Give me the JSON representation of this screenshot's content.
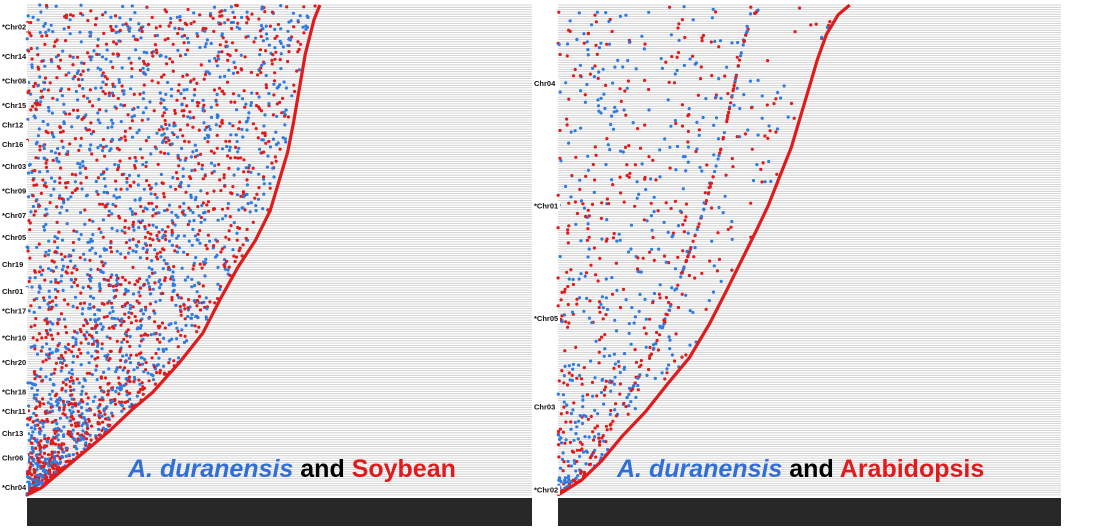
{
  "colors": {
    "blue_points": "#2f7be0",
    "red_points": "#e01b1b",
    "diagonal": "#e01b1b",
    "grid_line": "#c9c9c9",
    "background": "#ffffff",
    "bottom_band": "#1a1a1a"
  },
  "chart_data": [
    {
      "type": "scatter",
      "title": "",
      "caption": {
        "species": "A. duranensis",
        "connector": "and",
        "other": "Soybean"
      },
      "y_chromosome_labels": [
        "*Chr02",
        "*Chr14",
        "*Chr08",
        "*Chr15",
        "Chr12",
        "Chr16",
        "*Chr03",
        "*Chr09",
        "*Chr07",
        "*Chr05",
        "Chr19",
        "Chr01",
        "*Chr17",
        "*Chr10",
        "*Chr20",
        "*Chr18",
        "*Chr11",
        "Chr13",
        "Chr06",
        "*Chr04"
      ],
      "y_label_fractions": [
        0.05,
        0.11,
        0.16,
        0.21,
        0.25,
        0.29,
        0.335,
        0.385,
        0.435,
        0.48,
        0.535,
        0.59,
        0.63,
        0.685,
        0.735,
        0.795,
        0.835,
        0.88,
        0.93,
        0.99
      ],
      "diagonal_curve": [
        [
          0.0,
          1.0
        ],
        [
          0.05,
          0.985
        ],
        [
          0.11,
          0.955
        ],
        [
          0.2,
          0.91
        ],
        [
          0.28,
          0.87
        ],
        [
          0.36,
          0.825
        ],
        [
          0.43,
          0.79
        ],
        [
          0.52,
          0.73
        ],
        [
          0.6,
          0.67
        ],
        [
          0.66,
          0.6
        ],
        [
          0.72,
          0.535
        ],
        [
          0.78,
          0.48
        ],
        [
          0.83,
          0.42
        ],
        [
          0.86,
          0.36
        ],
        [
          0.89,
          0.3
        ],
        [
          0.91,
          0.24
        ],
        [
          0.93,
          0.17
        ],
        [
          0.95,
          0.1
        ],
        [
          0.98,
          0.03
        ],
        [
          1.0,
          0.0
        ]
      ],
      "point_seed": 11
    },
    {
      "type": "scatter",
      "title": "",
      "caption": {
        "species": "A. duranensis",
        "connector": "and",
        "other": "Arabidopsis"
      },
      "y_chromosome_labels": [
        "Chr04",
        "*Chr01",
        "*Chr05",
        "Chr03",
        "*Chr02"
      ],
      "y_label_fractions": [
        0.165,
        0.415,
        0.645,
        0.825,
        0.995
      ],
      "diagonal_curve": [
        [
          0.0,
          1.0
        ],
        [
          0.08,
          0.97
        ],
        [
          0.15,
          0.93
        ],
        [
          0.22,
          0.88
        ],
        [
          0.3,
          0.83
        ],
        [
          0.38,
          0.77
        ],
        [
          0.45,
          0.72
        ],
        [
          0.52,
          0.65
        ],
        [
          0.58,
          0.58
        ],
        [
          0.63,
          0.52
        ],
        [
          0.68,
          0.46
        ],
        [
          0.72,
          0.41
        ],
        [
          0.76,
          0.35
        ],
        [
          0.8,
          0.29
        ],
        [
          0.83,
          0.23
        ],
        [
          0.86,
          0.17
        ],
        [
          0.89,
          0.11
        ],
        [
          0.92,
          0.06
        ],
        [
          0.96,
          0.02
        ],
        [
          1.0,
          0.0
        ]
      ],
      "point_seed": 23
    }
  ]
}
